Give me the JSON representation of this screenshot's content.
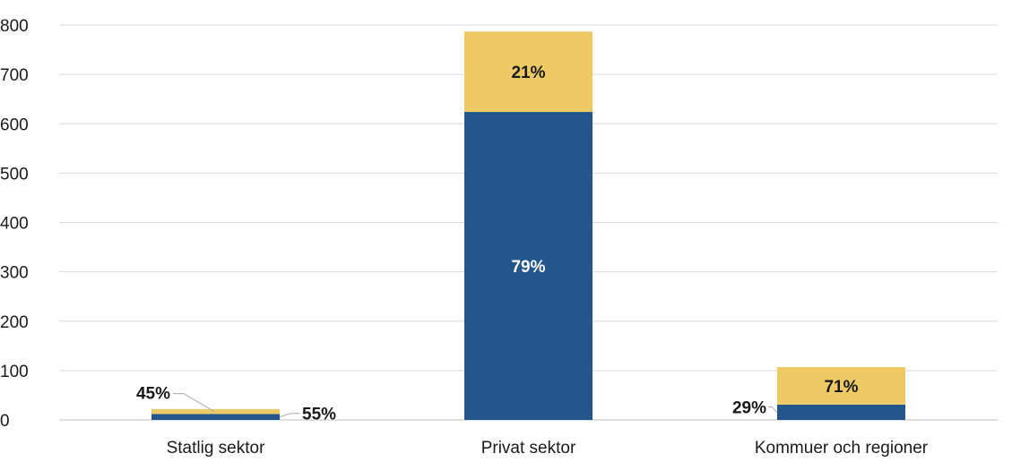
{
  "chart_data": {
    "type": "bar",
    "stacked": true,
    "categories": [
      "Statlig sektor",
      "Privat sektor",
      "Kommuer och regioner"
    ],
    "series": [
      {
        "color": "#23578B",
        "values": [
          12,
          624,
          31
        ],
        "labels": [
          "55%",
          "79%",
          "29%"
        ]
      },
      {
        "color": "#EDCA66",
        "values": [
          10,
          163,
          76
        ],
        "labels": [
          "45%",
          "21%",
          "71%"
        ]
      }
    ],
    "yticks": [
      "0",
      "100",
      "200",
      "300",
      "400",
      "500",
      "600",
      "700",
      "800"
    ],
    "ylim": [
      0,
      800
    ],
    "grid": true,
    "legend": "none",
    "xlabel": "",
    "ylabel": ""
  }
}
